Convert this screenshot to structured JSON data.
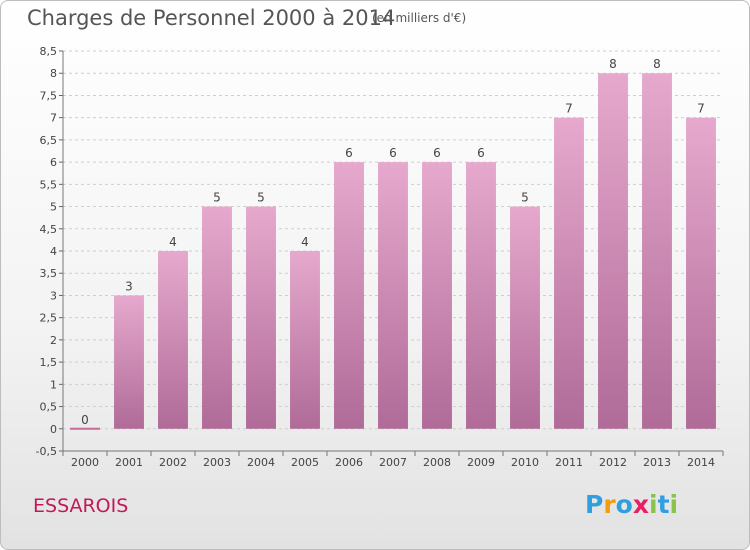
{
  "title": "Charges de Personnel 2000 à 2014",
  "subtitle": "(en milliers d'€)",
  "commune": "ESSAROIS",
  "logo": {
    "letters": [
      "P",
      "r",
      "o",
      "x",
      "i",
      "t",
      "i"
    ],
    "colors": [
      "#2f9fe0",
      "#f39c12",
      "#2f9fe0",
      "#e91e63",
      "#8bc34a",
      "#2f9fe0",
      "#8bc34a"
    ]
  },
  "colors": {
    "bar_top": "#e6a9cd",
    "bar_bottom": "#b06b98",
    "zero_bar": "#c66a9a"
  },
  "chart_data": {
    "type": "bar",
    "title": "Charges de Personnel 2000 à 2014",
    "subtitle": "(en milliers d'€)",
    "categories": [
      "2000",
      "2001",
      "2002",
      "2003",
      "2004",
      "2005",
      "2006",
      "2007",
      "2008",
      "2009",
      "2010",
      "2011",
      "2012",
      "2013",
      "2014"
    ],
    "values": [
      0,
      3,
      4,
      5,
      5,
      4,
      6,
      6,
      6,
      6,
      5,
      7,
      8,
      8,
      7
    ],
    "data_labels": [
      "0",
      "3",
      "4",
      "5",
      "5",
      "4",
      "6",
      "6",
      "6",
      "6",
      "5",
      "7",
      "8",
      "8",
      "7"
    ],
    "ylim": [
      -0.5,
      8.5
    ],
    "yticks": [
      "-0,5",
      "0",
      "0,5",
      "1",
      "1,5",
      "2",
      "2,5",
      "3",
      "3,5",
      "4",
      "4,5",
      "5",
      "5,5",
      "6",
      "6,5",
      "7",
      "7,5",
      "8",
      "8,5"
    ],
    "ytick_values": [
      -0.5,
      0,
      0.5,
      1,
      1.5,
      2,
      2.5,
      3,
      3.5,
      4,
      4.5,
      5,
      5.5,
      6,
      6.5,
      7,
      7.5,
      8,
      8.5
    ],
    "grid": true,
    "xlabel": "",
    "ylabel": ""
  }
}
